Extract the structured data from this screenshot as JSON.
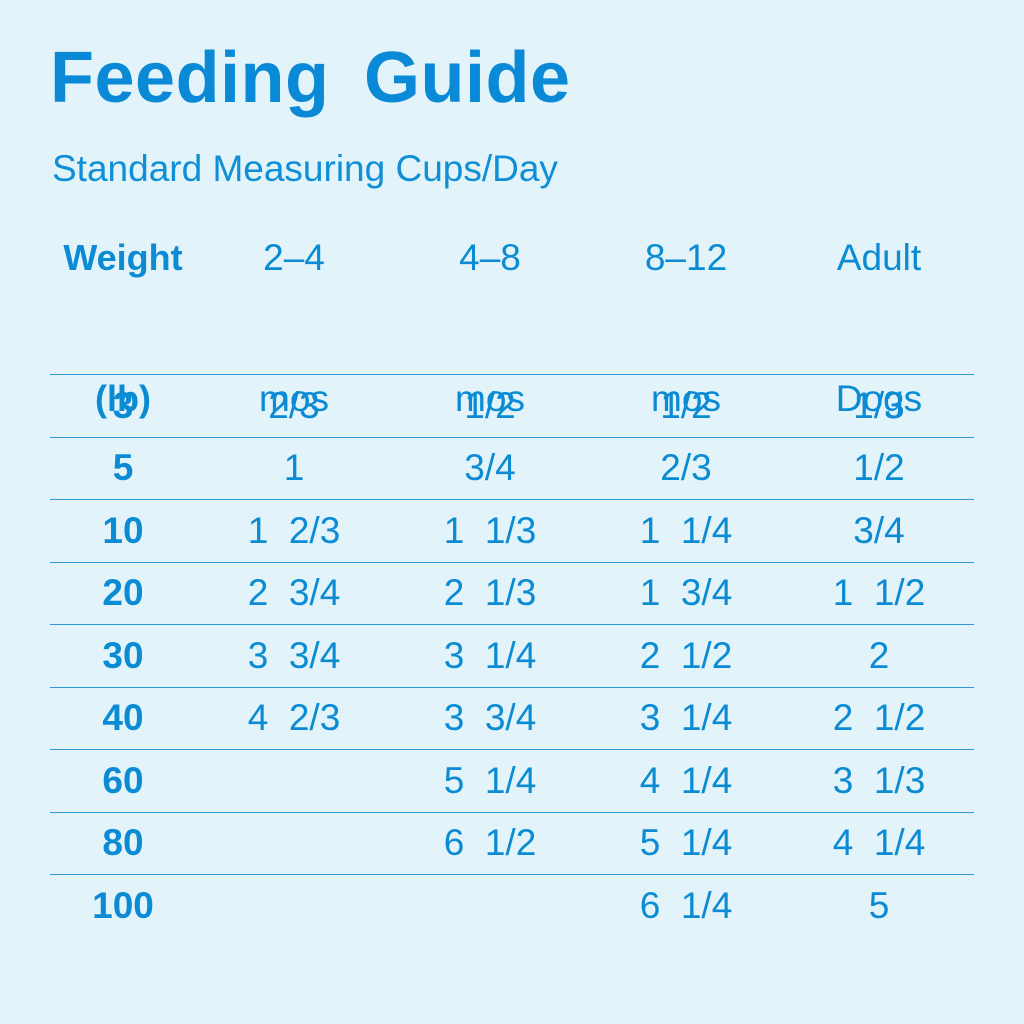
{
  "title": "Feeding Guide",
  "subtitle": "Standard Measuring Cups/Day",
  "table": {
    "headers": [
      [
        "Weight",
        "(lb)"
      ],
      [
        "2–4",
        "mos"
      ],
      [
        "4–8",
        "mos"
      ],
      [
        "8–12",
        "mos"
      ],
      [
        "Adult",
        "Dogs"
      ]
    ],
    "rows": [
      [
        "3",
        "2/3",
        "1/2",
        "1/2",
        "1/3"
      ],
      [
        "5",
        "1",
        "3/4",
        "2/3",
        "1/2"
      ],
      [
        "10",
        "1  2/3",
        "1  1/3",
        "1  1/4",
        "3/4"
      ],
      [
        "20",
        "2  3/4",
        "2  1/3",
        "1  3/4",
        "1  1/2"
      ],
      [
        "30",
        "3  3/4",
        "3  1/4",
        "2  1/2",
        "2"
      ],
      [
        "40",
        "4  2/3",
        "3  3/4",
        "3  1/4",
        "2  1/2"
      ],
      [
        "60",
        "",
        "5  1/4",
        "4  1/4",
        "3  1/3"
      ],
      [
        "80",
        "",
        "6  1/2",
        "5  1/4",
        "4  1/4"
      ],
      [
        "100",
        "",
        "",
        "6  1/4",
        "5"
      ]
    ]
  },
  "colors": {
    "background": "#e3f3fa",
    "text": "#0b8bd3",
    "rule": "#2b9ad6"
  }
}
